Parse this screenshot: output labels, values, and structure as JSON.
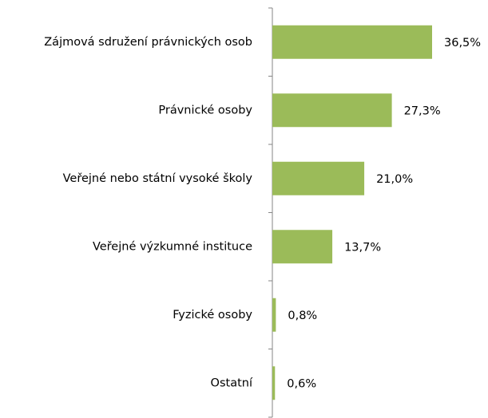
{
  "chart_data": {
    "type": "bar",
    "orientation": "horizontal",
    "categories": [
      "Zájmová sdružení právnických osob",
      "Právnické osoby",
      "Veřejné nebo státní vysoké školy",
      "Veřejné výzkumné instituce",
      "Fyzické osoby",
      "Ostatní"
    ],
    "values": [
      36.5,
      27.3,
      21.0,
      13.7,
      0.8,
      0.6
    ],
    "value_labels": [
      "36,5%",
      "27,3%",
      "21,0%",
      "13,7%",
      "0,8%",
      "0,6%"
    ],
    "color": "#9bbb59"
  }
}
